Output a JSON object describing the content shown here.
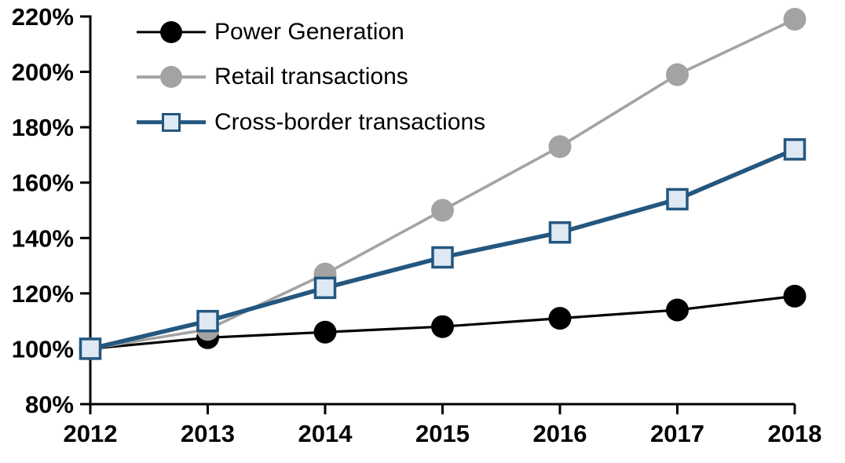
{
  "chart_data": {
    "type": "line",
    "title": "",
    "xlabel": "",
    "ylabel": "",
    "categories": [
      "2012",
      "2013",
      "2014",
      "2015",
      "2016",
      "2017",
      "2018"
    ],
    "x_tick_labels": [
      "2012",
      "2013",
      "2014",
      "2015",
      "2016",
      "2017",
      "2018"
    ],
    "ylim": [
      80,
      220
    ],
    "ytick_step": 20,
    "y_tick_labels": [
      "80%",
      "100%",
      "120%",
      "140%",
      "160%",
      "180%",
      "200%",
      "220%"
    ],
    "grid": false,
    "legend_position": "top-left-inside",
    "series": [
      {
        "name": "Power Generation",
        "color": "#000000",
        "marker": "circle",
        "marker_fill": "#000000",
        "line_width": 3.2,
        "values": [
          100,
          104,
          106,
          108,
          111,
          114,
          119
        ]
      },
      {
        "name": "Retail transactions",
        "color": "#A3A3A3",
        "marker": "circle",
        "marker_fill": "#A3A3A3",
        "line_width": 3.6,
        "values": [
          100,
          107,
          127,
          150,
          173,
          199,
          219
        ]
      },
      {
        "name": "Cross-border transactions",
        "color": "#24577F",
        "marker": "square",
        "marker_fill": "#DEE9F4",
        "line_width": 5.5,
        "values": [
          100,
          110,
          122,
          133,
          142,
          154,
          172
        ]
      }
    ]
  }
}
